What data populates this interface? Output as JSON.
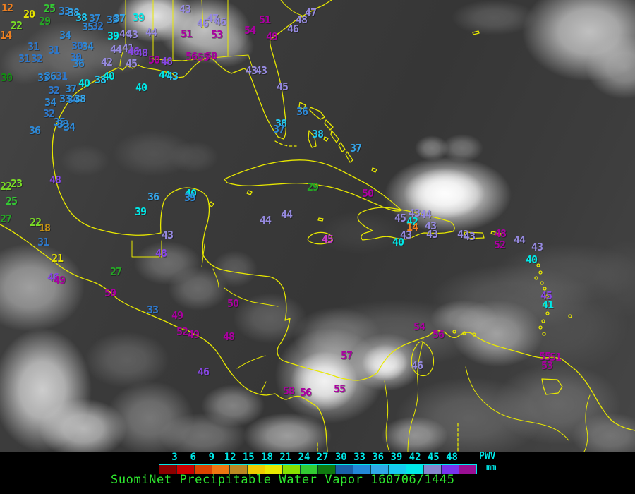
{
  "map": {
    "palette": {
      "or": "#f08020",
      "gd": "#cc9611",
      "yl": "#e8e400",
      "yg": "#7ade25",
      "gr": "#33cc33",
      "g2": "#25a825",
      "dg": "#118f11",
      "b1": "#2e78cc",
      "b2": "#2e8ad8",
      "b3": "#35a4e8",
      "cb": "#22c8f0",
      "cy": "#00e8e8",
      "lv": "#968ae0",
      "vi": "#8747e3",
      "mg": "#aa00a0",
      "pk": "#cc3ccc"
    },
    "coastline_color": "#e8e800",
    "stations": [
      [
        "12",
        2,
        4,
        "or"
      ],
      [
        "20",
        33,
        13,
        "yl"
      ],
      [
        "22",
        15,
        29,
        "yg"
      ],
      [
        "25",
        62,
        5,
        "gr"
      ],
      [
        "29",
        55,
        23,
        "g2"
      ],
      [
        "14",
        0,
        43,
        "or"
      ],
      [
        "33",
        83,
        9,
        "b2"
      ],
      [
        "38",
        96,
        11,
        "b3"
      ],
      [
        "38",
        107,
        18,
        "cb"
      ],
      [
        "37",
        126,
        19,
        "b2"
      ],
      [
        "35",
        151,
        21,
        "b2"
      ],
      [
        "37",
        161,
        19,
        "b3"
      ],
      [
        "39",
        188,
        18,
        "cy"
      ],
      [
        "35",
        116,
        31,
        "b2"
      ],
      [
        "32",
        130,
        30,
        "b1"
      ],
      [
        "34",
        84,
        43,
        "b2"
      ],
      [
        "39",
        152,
        44,
        "cy"
      ],
      [
        "44",
        169,
        41,
        "lv"
      ],
      [
        "43",
        179,
        42,
        "lv"
      ],
      [
        "44",
        206,
        39,
        "lv"
      ],
      [
        "51",
        256,
        41,
        "mg"
      ],
      [
        "43",
        254,
        6,
        "lv"
      ],
      [
        "46",
        279,
        26,
        "lv"
      ],
      [
        "47",
        293,
        19,
        "lv"
      ],
      [
        "46",
        304,
        24,
        "lv"
      ],
      [
        "53",
        299,
        42,
        "mg"
      ],
      [
        "50",
        291,
        72,
        "mg"
      ],
      [
        "51",
        367,
        21,
        "mg"
      ],
      [
        "54",
        346,
        36,
        "mg"
      ],
      [
        "49",
        377,
        45,
        "mg"
      ],
      [
        "47",
        432,
        11,
        "lv"
      ],
      [
        "48",
        419,
        21,
        "lv"
      ],
      [
        "46",
        407,
        34,
        "lv"
      ],
      [
        "31",
        39,
        59,
        "b1"
      ],
      [
        "31",
        68,
        64,
        "b1"
      ],
      [
        "30",
        101,
        58,
        "b1"
      ],
      [
        "34",
        116,
        59,
        "b2"
      ],
      [
        "44",
        156,
        63,
        "lv"
      ],
      [
        "41",
        173,
        61,
        "lv"
      ],
      [
        "46",
        181,
        66,
        "vi"
      ],
      [
        "48",
        193,
        68,
        "vi"
      ],
      [
        "31",
        26,
        76,
        "b1"
      ],
      [
        "32",
        44,
        76,
        "b1"
      ],
      [
        "30",
        99,
        74,
        "b1"
      ],
      [
        "36",
        103,
        83,
        "b2"
      ],
      [
        "42",
        143,
        81,
        "lv"
      ],
      [
        "45",
        178,
        83,
        "lv"
      ],
      [
        "50",
        210,
        78,
        "mg"
      ],
      [
        "48",
        228,
        80,
        "vi"
      ],
      [
        "56",
        263,
        73,
        "mg"
      ],
      [
        "55",
        280,
        74,
        "mg"
      ],
      [
        "30",
        1,
        103,
        "dg"
      ],
      [
        "33",
        53,
        103,
        "b2"
      ],
      [
        "36",
        63,
        101,
        "b2"
      ],
      [
        "31",
        79,
        101,
        "b1"
      ],
      [
        "40",
        111,
        111,
        "cy"
      ],
      [
        "38",
        134,
        106,
        "cb"
      ],
      [
        "40",
        146,
        101,
        "cy"
      ],
      [
        "44",
        225,
        99,
        "cy"
      ],
      [
        "43",
        236,
        101,
        "cb"
      ],
      [
        "40",
        192,
        117,
        "cy"
      ],
      [
        "32",
        68,
        121,
        "b1"
      ],
      [
        "37",
        92,
        119,
        "b2"
      ],
      [
        "34",
        63,
        138,
        "b2"
      ],
      [
        "33",
        84,
        133,
        "b2"
      ],
      [
        "34",
        95,
        134,
        "b2"
      ],
      [
        "38",
        105,
        133,
        "b3"
      ],
      [
        "32",
        61,
        154,
        "b1"
      ],
      [
        "35",
        76,
        166,
        "b2"
      ],
      [
        "33",
        81,
        169,
        "b2"
      ],
      [
        "34",
        90,
        173,
        "b2"
      ],
      [
        "36",
        41,
        178,
        "b2"
      ],
      [
        "36",
        420,
        151,
        "b2"
      ],
      [
        "38",
        390,
        168,
        "cb"
      ],
      [
        "37",
        387,
        176,
        "b2"
      ],
      [
        "38",
        442,
        183,
        "cb"
      ],
      [
        "37",
        496,
        203,
        "b3"
      ],
      [
        "45",
        392,
        116,
        "lv"
      ],
      [
        "43",
        348,
        93,
        "lv"
      ],
      [
        "43",
        362,
        93,
        "lv"
      ],
      [
        "48",
        70,
        248,
        "vi"
      ],
      [
        "23",
        15,
        253,
        "yg"
      ],
      [
        "22",
        0,
        257,
        "yg"
      ],
      [
        "25",
        8,
        278,
        "gr"
      ],
      [
        "27",
        0,
        303,
        "g2"
      ],
      [
        "22",
        42,
        308,
        "yg"
      ],
      [
        "18",
        55,
        316,
        "gd"
      ],
      [
        "31",
        53,
        336,
        "b1"
      ],
      [
        "21",
        73,
        359,
        "yl"
      ],
      [
        "46",
        67,
        386,
        "vi"
      ],
      [
        "49",
        76,
        390,
        "mg"
      ],
      [
        "36",
        209,
        272,
        "b3"
      ],
      [
        "40",
        262,
        267,
        "cy"
      ],
      [
        "39",
        261,
        273,
        "b2"
      ],
      [
        "39",
        191,
        293,
        "cy"
      ],
      [
        "43",
        229,
        326,
        "lv"
      ],
      [
        "48",
        220,
        352,
        "vi"
      ],
      [
        "27",
        156,
        378,
        "g2"
      ],
      [
        "50",
        148,
        408,
        "mg"
      ],
      [
        "33",
        208,
        432,
        "b1"
      ],
      [
        "49",
        243,
        440,
        "mg"
      ],
      [
        "52",
        250,
        463,
        "mg"
      ],
      [
        "49",
        266,
        467,
        "mg"
      ],
      [
        "50",
        322,
        423,
        "mg"
      ],
      [
        "48",
        316,
        470,
        "mg"
      ],
      [
        "46",
        280,
        520,
        "vi"
      ],
      [
        "29",
        435,
        258,
        "g2"
      ],
      [
        "45",
        456,
        332,
        "pk"
      ],
      [
        "50",
        513,
        267,
        "mg"
      ],
      [
        "44",
        368,
        305,
        "lv"
      ],
      [
        "44",
        398,
        297,
        "lv"
      ],
      [
        "45",
        559,
        302,
        "lv"
      ],
      [
        "43",
        579,
        295,
        "lv"
      ],
      [
        "44",
        595,
        297,
        "lv"
      ],
      [
        "42",
        576,
        307,
        "cy"
      ],
      [
        "43",
        602,
        313,
        "lv"
      ],
      [
        "14",
        576,
        315,
        "or"
      ],
      [
        "43",
        567,
        326,
        "lv"
      ],
      [
        "43",
        604,
        325,
        "lv"
      ],
      [
        "40",
        556,
        336,
        "cy"
      ],
      [
        "42",
        648,
        325,
        "lv"
      ],
      [
        "43",
        657,
        328,
        "lv"
      ],
      [
        "48",
        701,
        324,
        "mg"
      ],
      [
        "52",
        700,
        340,
        "mg"
      ],
      [
        "44",
        728,
        333,
        "lv"
      ],
      [
        "43",
        753,
        343,
        "lv"
      ],
      [
        "40",
        745,
        361,
        "cy"
      ],
      [
        "45",
        766,
        412,
        "vi"
      ],
      [
        "41",
        768,
        425,
        "cy"
      ],
      [
        "55",
        764,
        498,
        "mg"
      ],
      [
        "51",
        779,
        499,
        "mg"
      ],
      [
        "53",
        767,
        511,
        "mg"
      ],
      [
        "54",
        586,
        456,
        "mg"
      ],
      [
        "56",
        613,
        467,
        "mg"
      ],
      [
        "57",
        483,
        497,
        "mg"
      ],
      [
        "46",
        583,
        511,
        "lv"
      ],
      [
        "58",
        401,
        547,
        "mg"
      ],
      [
        "56",
        425,
        549,
        "mg"
      ],
      [
        "55",
        473,
        544,
        "mg"
      ]
    ]
  },
  "legend": {
    "ticks": [
      "3",
      "6",
      "9",
      "12",
      "15",
      "18",
      "21",
      "24",
      "27",
      "30",
      "33",
      "36",
      "39",
      "42",
      "45",
      "48"
    ],
    "tick_color": "#00e8e8",
    "segment_colors": [
      "#8b0000",
      "#cc0000",
      "#dd4400",
      "#ee7711",
      "#bb8822",
      "#eecc00",
      "#e8e800",
      "#88e000",
      "#33cc33",
      "#0f7a0f",
      "#1a5fa8",
      "#2288d8",
      "#30a8e8",
      "#18c8f0",
      "#00e8e8",
      "#8585cc",
      "#7733ee",
      "#990f93"
    ],
    "pwv_label": "PWV",
    "unit_label": "mm"
  },
  "footer": {
    "title": "SuomiNet Precipitable Water Vapor 160706/1445",
    "title_color": "#2ee82e"
  }
}
